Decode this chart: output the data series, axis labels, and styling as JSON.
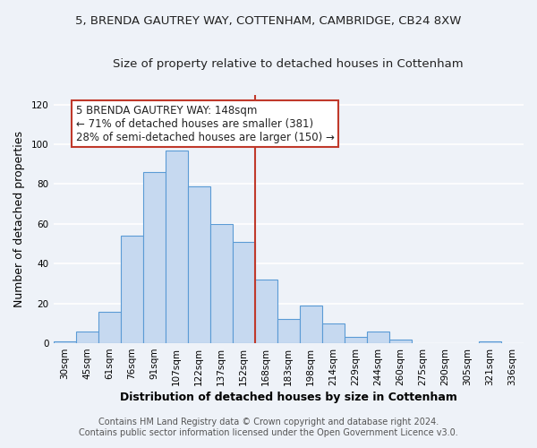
{
  "title_line1": "5, BRENDA GAUTREY WAY, COTTENHAM, CAMBRIDGE, CB24 8XW",
  "title_line2": "Size of property relative to detached houses in Cottenham",
  "xlabel": "Distribution of detached houses by size in Cottenham",
  "ylabel": "Number of detached properties",
  "categories": [
    "30sqm",
    "45sqm",
    "61sqm",
    "76sqm",
    "91sqm",
    "107sqm",
    "122sqm",
    "137sqm",
    "152sqm",
    "168sqm",
    "183sqm",
    "198sqm",
    "214sqm",
    "229sqm",
    "244sqm",
    "260sqm",
    "275sqm",
    "290sqm",
    "305sqm",
    "321sqm",
    "336sqm"
  ],
  "values": [
    1,
    6,
    16,
    54,
    86,
    97,
    79,
    60,
    51,
    32,
    12,
    19,
    10,
    3,
    6,
    2,
    0,
    0,
    0,
    1,
    0
  ],
  "bar_color": "#c6d9f0",
  "bar_edge_color": "#5b9bd5",
  "annotation_box_text": "5 BRENDA GAUTREY WAY: 148sqm\n← 71% of detached houses are smaller (381)\n28% of semi-detached houses are larger (150) →",
  "annotation_box_color": "#ffffff",
  "annotation_box_edge_color": "#c0392b",
  "vline_color": "#c0392b",
  "vline_x_index": 8.5,
  "ylim": [
    0,
    125
  ],
  "yticks": [
    0,
    20,
    40,
    60,
    80,
    100,
    120
  ],
  "footer_line1": "Contains HM Land Registry data © Crown copyright and database right 2024.",
  "footer_line2": "Contains public sector information licensed under the Open Government Licence v3.0.",
  "background_color": "#eef2f8",
  "grid_color": "#ffffff",
  "title_fontsize": 9.5,
  "subtitle_fontsize": 9.5,
  "axis_label_fontsize": 9,
  "tick_fontsize": 7.5,
  "annotation_fontsize": 8.5,
  "footer_fontsize": 7
}
